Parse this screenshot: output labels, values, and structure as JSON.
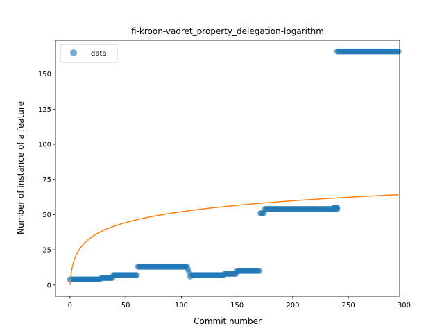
{
  "chart_data": {
    "type": "scatter",
    "title": "fi-kroon-vadret_property_delegation-logarithm",
    "xlabel": "Commit number",
    "ylabel": "Number of instance of a feature",
    "xlim": [
      -13,
      296
    ],
    "ylim": [
      -8,
      174
    ],
    "xticks": [
      0,
      50,
      100,
      150,
      200,
      250,
      300
    ],
    "yticks": [
      0,
      25,
      50,
      75,
      100,
      125,
      150
    ],
    "legend": {
      "placement": "top-left",
      "entries": [
        "data"
      ]
    },
    "colors": {
      "data": "#1f77b4",
      "fit": "#ff7f0e"
    },
    "series": [
      {
        "name": "data",
        "kind": "scatter",
        "segments": [
          {
            "x_start": 0,
            "x_end": 27,
            "y": 4
          },
          {
            "x_start": 28,
            "x_end": 38,
            "y": 5
          },
          {
            "x_start": 39,
            "x_end": 60,
            "y": 7
          },
          {
            "x_start": 61,
            "x_end": 105,
            "y": 13
          },
          {
            "x_start": 106,
            "x_end": 106,
            "y": 11
          },
          {
            "x_start": 107,
            "x_end": 107,
            "y": 9
          },
          {
            "x_start": 108,
            "x_end": 108,
            "y": 6
          },
          {
            "x_start": 109,
            "x_end": 138,
            "y": 7
          },
          {
            "x_start": 139,
            "x_end": 149,
            "y": 8
          },
          {
            "x_start": 150,
            "x_end": 170,
            "y": 10
          },
          {
            "x_start": 171,
            "x_end": 174,
            "y": 51
          },
          {
            "x_start": 175,
            "x_end": 240,
            "y": 54
          },
          {
            "x_start": 237,
            "x_end": 240,
            "y": 55
          },
          {
            "x_start": 240,
            "x_end": 295,
            "y": 166
          }
        ]
      },
      {
        "kind": "line",
        "model": "logarithmic",
        "a": 1.9,
        "b": 11.28,
        "x_start": 0,
        "x_end": 295
      }
    ]
  }
}
